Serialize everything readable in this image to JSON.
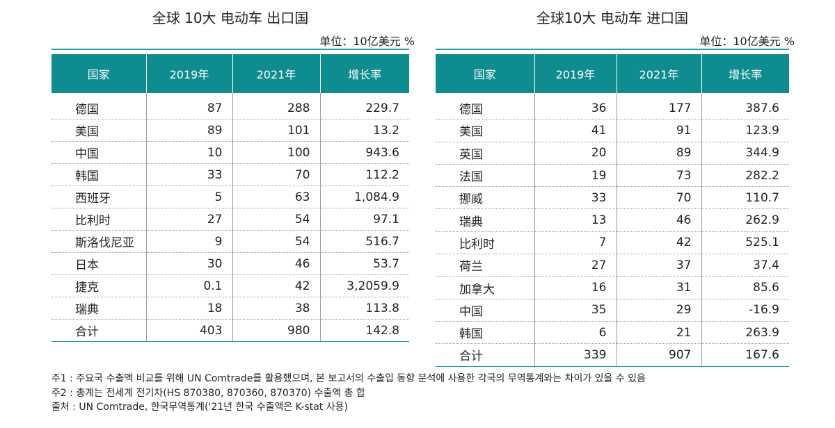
{
  "export_table": {
    "title": "全球 10大 电动车 出口国",
    "unit": "单位：10亿美元  %",
    "headers": [
      "国家",
      "2019年",
      "2021年",
      "增长率"
    ],
    "rows": [
      {
        "country": "德国",
        "y2019": "87",
        "y2021": "288",
        "growth": "229.7"
      },
      {
        "country": "美国",
        "y2019": "89",
        "y2021": "101",
        "growth": "13.2"
      },
      {
        "country": "中国",
        "y2019": "10",
        "y2021": "100",
        "growth": "943.6"
      },
      {
        "country": "韩国",
        "y2019": "33",
        "y2021": "70",
        "growth": "112.2"
      },
      {
        "country": "西班牙",
        "y2019": "5",
        "y2021": "63",
        "growth": "1,084.9"
      },
      {
        "country": "比利时",
        "y2019": "27",
        "y2021": "54",
        "growth": "97.1"
      },
      {
        "country": "斯洛伐尼亚",
        "y2019": "9",
        "y2021": "54",
        "growth": "516.7"
      },
      {
        "country": "日本",
        "y2019": "30",
        "y2021": "46",
        "growth": "53.7"
      },
      {
        "country": "捷克",
        "y2019": "0.1",
        "y2021": "42",
        "growth": "3,2059.9"
      },
      {
        "country": "瑞典",
        "y2019": "18",
        "y2021": "38",
        "growth": "113.8"
      }
    ],
    "total": {
      "country": "合计",
      "y2019": "403",
      "y2021": "980",
      "growth": "142.8"
    }
  },
  "import_table": {
    "title": "全球10大 电动车 进口国",
    "unit": "单位：10亿美元  %",
    "headers": [
      "国家",
      "2019年",
      "2021年",
      "增长率"
    ],
    "rows": [
      {
        "country": "德国",
        "y2019": "36",
        "y2021": "177",
        "growth": "387.6"
      },
      {
        "country": "美国",
        "y2019": "41",
        "y2021": "91",
        "growth": "123.9"
      },
      {
        "country": "英国",
        "y2019": "20",
        "y2021": "89",
        "growth": "344.9"
      },
      {
        "country": "法国",
        "y2019": "19",
        "y2021": "73",
        "growth": "282.2"
      },
      {
        "country": "挪威",
        "y2019": "33",
        "y2021": "70",
        "growth": "110.7"
      },
      {
        "country": "瑞典",
        "y2019": "13",
        "y2021": "46",
        "growth": "262.9"
      },
      {
        "country": "比利时",
        "y2019": "7",
        "y2021": "42",
        "growth": "525.1"
      },
      {
        "country": "荷兰",
        "y2019": "27",
        "y2021": "37",
        "growth": "37.4"
      },
      {
        "country": "加拿大",
        "y2019": "16",
        "y2021": "31",
        "growth": "85.6"
      },
      {
        "country": "中国",
        "y2019": "35",
        "y2021": "29",
        "growth": "-16.9"
      },
      {
        "country": "韩国",
        "y2019": "6",
        "y2021": "21",
        "growth": "263.9"
      }
    ],
    "total": {
      "country": "合计",
      "y2019": "339",
      "y2021": "907",
      "growth": "167.6"
    }
  },
  "notes": [
    "주1 : 주요국 수출액 비교를 위해 UN Comtrade를 활용했으며, 본 보고서의 수출입 동향 분석에 사용한 각국의 무역통계와는 차이가 있을 수 있음",
    "주2 : 총계는 전세계 전기차(HS 870380, 870360, 870370) 수출액 총 합",
    "출처 : UN Comtrade, 한국무역통계('21년 한국 수출액은 K-stat 사용)"
  ],
  "colors": {
    "accent": "#0e8c8f",
    "rule": "#2a9a9c"
  }
}
